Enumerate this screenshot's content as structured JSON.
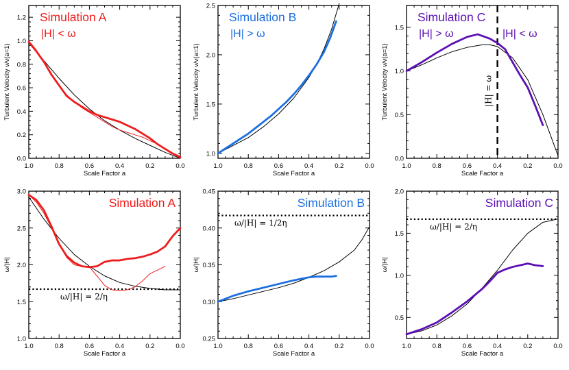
{
  "colors": {
    "A": "#ee1c1c",
    "B": "#1b6fe0",
    "C": "#5b0fb3",
    "ref": "#000000"
  },
  "chart_data": [
    {
      "type": "line",
      "panel": "top-A",
      "title": "Simulation A",
      "subtitle": "|H| < ω",
      "xlabel": "Scale Factor a",
      "ylabel": "Turbulent Velocity v/v(a=1)",
      "xlim": [
        1.0,
        0.0
      ],
      "ylim": [
        0.0,
        1.3
      ],
      "xticks": [
        "1.0",
        "0.8",
        "0.6",
        "0.4",
        "0.2",
        "0.0"
      ],
      "xticks_values": [
        1.0,
        0.8,
        0.6,
        0.4,
        0.2,
        0.0
      ],
      "yticks": [
        "0.0",
        "0.2",
        "0.4",
        "0.6",
        "0.8",
        "1.0",
        "1.2"
      ],
      "yticks_values": [
        0.0,
        0.2,
        0.4,
        0.6,
        0.8,
        1.0,
        1.2
      ],
      "series": [
        {
          "name": "thick",
          "style": "thick",
          "color": "A",
          "x": [
            1.0,
            0.95,
            0.9,
            0.85,
            0.8,
            0.75,
            0.7,
            0.65,
            0.6,
            0.55,
            0.5,
            0.45,
            0.4,
            0.35,
            0.3,
            0.25,
            0.2,
            0.15,
            0.1,
            0.05,
            0.0
          ],
          "y": [
            0.99,
            0.91,
            0.82,
            0.71,
            0.62,
            0.53,
            0.48,
            0.44,
            0.4,
            0.37,
            0.35,
            0.33,
            0.31,
            0.28,
            0.25,
            0.21,
            0.17,
            0.12,
            0.08,
            0.04,
            0.01
          ]
        },
        {
          "name": "thin",
          "style": "thin",
          "color": "A",
          "x": [
            1.0,
            0.95,
            0.9,
            0.85,
            0.8,
            0.75,
            0.7,
            0.65,
            0.6,
            0.55,
            0.5,
            0.45,
            0.4,
            0.35,
            0.3,
            0.25,
            0.2,
            0.15,
            0.1,
            0.05,
            0.0
          ],
          "y": [
            1.0,
            0.92,
            0.82,
            0.72,
            0.62,
            0.54,
            0.48,
            0.43,
            0.39,
            0.35,
            0.31,
            0.27,
            0.24,
            0.22,
            0.2,
            0.18,
            0.15,
            0.12,
            0.08,
            0.04,
            0.0
          ]
        },
        {
          "name": "model",
          "style": "model",
          "color": "ref",
          "x": [
            1.0,
            0.9,
            0.8,
            0.7,
            0.6,
            0.5,
            0.4,
            0.3,
            0.2,
            0.1,
            0.0
          ],
          "y": [
            0.98,
            0.83,
            0.68,
            0.54,
            0.42,
            0.32,
            0.24,
            0.17,
            0.11,
            0.05,
            0.0
          ]
        }
      ],
      "hlines": [],
      "vlines": [],
      "annotations": []
    },
    {
      "type": "line",
      "panel": "top-B",
      "title": "Simulation B",
      "subtitle": "|H| > ω",
      "xlabel": "Scale Factor a",
      "ylabel": "Turbulent Velocity v/v(a=1)",
      "xlim": [
        1.0,
        0.0
      ],
      "ylim": [
        0.95,
        2.5
      ],
      "xticks": [
        "1.0",
        "0.8",
        "0.6",
        "0.4",
        "0.2",
        "0.0"
      ],
      "xticks_values": [
        1.0,
        0.8,
        0.6,
        0.4,
        0.2,
        0.0
      ],
      "yticks": [
        "1.0",
        "1.5",
        "2.0",
        "2.5"
      ],
      "yticks_values": [
        1.0,
        1.5,
        2.0,
        2.5
      ],
      "series": [
        {
          "name": "thick",
          "style": "thick",
          "color": "B",
          "x": [
            1.0,
            0.95,
            0.9,
            0.85,
            0.8,
            0.75,
            0.7,
            0.65,
            0.6,
            0.55,
            0.5,
            0.45,
            0.4,
            0.35,
            0.3,
            0.26,
            0.22
          ],
          "y": [
            1.0,
            1.05,
            1.1,
            1.15,
            1.2,
            1.26,
            1.32,
            1.38,
            1.45,
            1.52,
            1.6,
            1.69,
            1.79,
            1.9,
            2.03,
            2.17,
            2.34
          ]
        },
        {
          "name": "model",
          "style": "model",
          "color": "ref",
          "x": [
            1.0,
            0.9,
            0.8,
            0.7,
            0.6,
            0.5,
            0.4,
            0.35,
            0.3,
            0.25,
            0.2
          ],
          "y": [
            1.0,
            1.08,
            1.16,
            1.27,
            1.4,
            1.56,
            1.77,
            1.9,
            2.06,
            2.26,
            2.52
          ]
        }
      ],
      "hlines": [],
      "vlines": [],
      "annotations": []
    },
    {
      "type": "line",
      "panel": "top-C",
      "title": "Simulation C",
      "subtitle": "|H| > ω",
      "subtitle_right": "|H| < ω",
      "xlabel": "Scale Factor a",
      "ylabel": "Turbulent Velocity v/v(a=1)",
      "xlim": [
        1.0,
        0.0
      ],
      "ylim": [
        0.0,
        1.75
      ],
      "xticks": [
        "1.0",
        "0.8",
        "0.6",
        "0.4",
        "0.2",
        "0.0"
      ],
      "xticks_values": [
        1.0,
        0.8,
        0.6,
        0.4,
        0.2,
        0.0
      ],
      "yticks": [
        "0.0",
        "0.5",
        "1.0",
        "1.5"
      ],
      "yticks_values": [
        0.0,
        0.5,
        1.0,
        1.5
      ],
      "series": [
        {
          "name": "thick",
          "style": "thick",
          "color": "C",
          "x": [
            1.0,
            0.9,
            0.8,
            0.7,
            0.6,
            0.53,
            0.45,
            0.4,
            0.35,
            0.3,
            0.25,
            0.2,
            0.15,
            0.1
          ],
          "y": [
            1.0,
            1.1,
            1.21,
            1.31,
            1.39,
            1.42,
            1.37,
            1.32,
            1.25,
            1.1,
            0.95,
            0.81,
            0.6,
            0.38
          ]
        },
        {
          "name": "model",
          "style": "model",
          "color": "ref",
          "x": [
            1.0,
            0.9,
            0.8,
            0.7,
            0.6,
            0.5,
            0.45,
            0.4,
            0.3,
            0.2,
            0.1,
            0.0
          ],
          "y": [
            1.0,
            1.07,
            1.15,
            1.22,
            1.27,
            1.3,
            1.3,
            1.28,
            1.15,
            0.9,
            0.5,
            0.03
          ]
        }
      ],
      "hlines": [],
      "vlines": [
        {
          "x": 0.4,
          "label": "|H| = ω"
        }
      ],
      "annotations": []
    },
    {
      "type": "line",
      "panel": "bottom-A",
      "title": "Simulation A",
      "subtitle": "",
      "xlabel": "Scale Factor a",
      "ylabel": "ω/|H|",
      "xlim": [
        1.0,
        0.0
      ],
      "ylim": [
        1.0,
        3.0
      ],
      "xticks": [
        "1.0",
        "0.8",
        "0.6",
        "0.4",
        "0.2",
        "0.0"
      ],
      "xticks_values": [
        1.0,
        0.8,
        0.6,
        0.4,
        0.2,
        0.0
      ],
      "yticks": [
        "1.0",
        "1.5",
        "2.0",
        "2.5",
        "3.0"
      ],
      "yticks_values": [
        1.0,
        1.5,
        2.0,
        2.5,
        3.0
      ],
      "series": [
        {
          "name": "thick",
          "style": "thick",
          "color": "A",
          "x": [
            1.0,
            0.95,
            0.9,
            0.85,
            0.8,
            0.75,
            0.7,
            0.65,
            0.6,
            0.55,
            0.5,
            0.45,
            0.4,
            0.35,
            0.3,
            0.25,
            0.2,
            0.15,
            0.1,
            0.05,
            0.0
          ],
          "y": [
            2.95,
            2.88,
            2.74,
            2.52,
            2.28,
            2.12,
            2.03,
            1.98,
            1.97,
            1.98,
            2.04,
            2.06,
            2.06,
            2.08,
            2.09,
            2.11,
            2.14,
            2.18,
            2.25,
            2.39,
            2.5
          ]
        },
        {
          "name": "thin",
          "style": "thin",
          "color": "A",
          "x": [
            1.0,
            0.95,
            0.9,
            0.85,
            0.8,
            0.75,
            0.7,
            0.65,
            0.6,
            0.55,
            0.5,
            0.45,
            0.4,
            0.35,
            0.3,
            0.25,
            0.2,
            0.15,
            0.1
          ],
          "y": [
            2.95,
            2.85,
            2.7,
            2.5,
            2.28,
            2.1,
            2.0,
            1.98,
            1.97,
            1.85,
            1.72,
            1.66,
            1.65,
            1.66,
            1.7,
            1.78,
            1.88,
            1.93,
            1.98
          ]
        },
        {
          "name": "model",
          "style": "model",
          "color": "ref",
          "x": [
            1.0,
            0.9,
            0.8,
            0.7,
            0.6,
            0.5,
            0.4,
            0.3,
            0.2,
            0.1,
            0.0
          ],
          "y": [
            2.92,
            2.62,
            2.36,
            2.14,
            1.98,
            1.85,
            1.76,
            1.71,
            1.68,
            1.66,
            1.66
          ]
        }
      ],
      "hlines": [
        {
          "y": 1.67,
          "label": "ω/|H| = 2/η"
        }
      ],
      "vlines": [],
      "annotations": []
    },
    {
      "type": "line",
      "panel": "bottom-B",
      "title": "Simulation B",
      "subtitle": "",
      "xlabel": "Scale Factor a",
      "ylabel": "ω/|H|",
      "xlim": [
        1.0,
        0.0
      ],
      "ylim": [
        0.25,
        0.45
      ],
      "xticks": [
        "1.0",
        "0.8",
        "0.6",
        "0.4",
        "0.2",
        "0.0"
      ],
      "xticks_values": [
        1.0,
        0.8,
        0.6,
        0.4,
        0.2,
        0.0
      ],
      "yticks": [
        "0.25",
        "0.30",
        "0.35",
        "0.40",
        "0.45"
      ],
      "yticks_values": [
        0.25,
        0.3,
        0.35,
        0.4,
        0.45
      ],
      "series": [
        {
          "name": "thick",
          "style": "thick",
          "color": "B",
          "x": [
            1.0,
            0.9,
            0.8,
            0.7,
            0.6,
            0.5,
            0.45,
            0.4,
            0.35,
            0.3,
            0.25,
            0.22
          ],
          "y": [
            0.3,
            0.308,
            0.314,
            0.319,
            0.324,
            0.329,
            0.331,
            0.333,
            0.334,
            0.334,
            0.334,
            0.335
          ]
        },
        {
          "name": "model",
          "style": "model",
          "color": "ref",
          "x": [
            1.0,
            0.9,
            0.8,
            0.7,
            0.6,
            0.5,
            0.4,
            0.3,
            0.2,
            0.1,
            0.05,
            0.0
          ],
          "y": [
            0.3,
            0.304,
            0.309,
            0.314,
            0.319,
            0.325,
            0.333,
            0.342,
            0.354,
            0.37,
            0.384,
            0.402
          ]
        }
      ],
      "hlines": [
        {
          "y": 0.417,
          "label": "ω/|H| = 1/2η"
        }
      ],
      "vlines": [],
      "annotations": []
    },
    {
      "type": "line",
      "panel": "bottom-C",
      "title": "Simulation C",
      "subtitle": "",
      "xlabel": "Scale Factor a",
      "ylabel": "ω/|H|",
      "xlim": [
        1.0,
        0.0
      ],
      "ylim": [
        0.25,
        2.0
      ],
      "xticks": [
        "1.0",
        "0.8",
        "0.6",
        "0.4",
        "0.2",
        "0.0"
      ],
      "xticks_values": [
        1.0,
        0.8,
        0.6,
        0.4,
        0.2,
        0.0
      ],
      "yticks": [
        "0.5",
        "1.0",
        "1.5",
        "2.0"
      ],
      "yticks_values": [
        0.5,
        1.0,
        1.5,
        2.0
      ],
      "series": [
        {
          "name": "thick",
          "style": "thick",
          "color": "C",
          "x": [
            1.0,
            0.9,
            0.8,
            0.7,
            0.6,
            0.5,
            0.45,
            0.4,
            0.35,
            0.3,
            0.25,
            0.2,
            0.15,
            0.1
          ],
          "y": [
            0.3,
            0.36,
            0.44,
            0.56,
            0.69,
            0.84,
            0.93,
            1.03,
            1.07,
            1.1,
            1.12,
            1.14,
            1.12,
            1.11
          ]
        },
        {
          "name": "model",
          "style": "model",
          "color": "ref",
          "x": [
            1.0,
            0.9,
            0.8,
            0.7,
            0.6,
            0.5,
            0.4,
            0.3,
            0.2,
            0.1,
            0.0
          ],
          "y": [
            0.3,
            0.34,
            0.41,
            0.52,
            0.66,
            0.85,
            1.06,
            1.3,
            1.5,
            1.63,
            1.67
          ]
        }
      ],
      "hlines": [
        {
          "y": 1.667,
          "label": "ω/|H| = 2/η"
        }
      ],
      "vlines": [],
      "annotations": []
    }
  ]
}
